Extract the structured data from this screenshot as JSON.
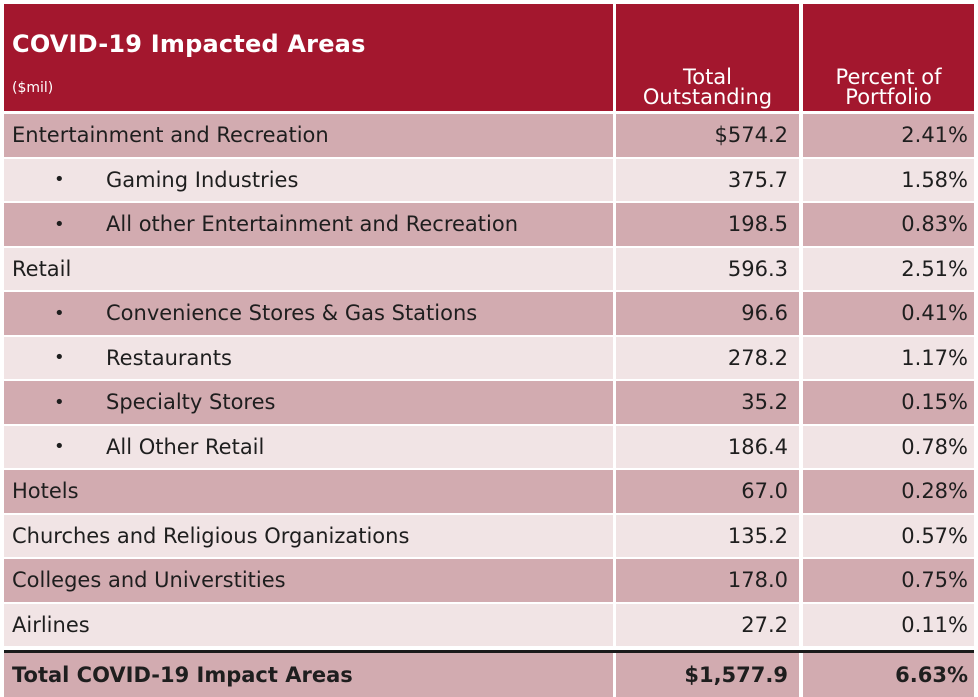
{
  "header": {
    "title": "COVID-19 Impacted Areas",
    "unit": "($mil)",
    "col2_line1": "Total",
    "col2_line2": "Outstanding",
    "col3_line1": "Percent of",
    "col3_line2": "Portfolio"
  },
  "rows": [
    {
      "label": "Entertainment and Recreation",
      "outstanding": "$574.2",
      "percent": "2.41%",
      "indent": false
    },
    {
      "label": "Gaming Industries",
      "outstanding": "375.7",
      "percent": "1.58%",
      "indent": true
    },
    {
      "label": "All other Entertainment and Recreation",
      "outstanding": "198.5",
      "percent": "0.83%",
      "indent": true
    },
    {
      "label": "Retail",
      "outstanding": "596.3",
      "percent": "2.51%",
      "indent": false
    },
    {
      "label": "Convenience Stores & Gas Stations",
      "outstanding": "96.6",
      "percent": "0.41%",
      "indent": true
    },
    {
      "label": "Restaurants",
      "outstanding": "278.2",
      "percent": "1.17%",
      "indent": true
    },
    {
      "label": "Specialty Stores",
      "outstanding": "35.2",
      "percent": "0.15%",
      "indent": true
    },
    {
      "label": "All Other Retail",
      "outstanding": "186.4",
      "percent": "0.78%",
      "indent": true
    },
    {
      "label": "Hotels",
      "outstanding": "67.0",
      "percent": "0.28%",
      "indent": false
    },
    {
      "label": "Churches and Religious Organizations",
      "outstanding": "135.2",
      "percent": "0.57%",
      "indent": false
    },
    {
      "label": "Colleges and Universtities",
      "outstanding": "178.0",
      "percent": "0.75%",
      "indent": false
    },
    {
      "label": "Airlines",
      "outstanding": "27.2",
      "percent": "0.11%",
      "indent": false
    }
  ],
  "bullet": "•",
  "total": {
    "label": "Total COVID-19 Impact Areas",
    "outstanding": "$1,577.9",
    "percent": "6.63%"
  },
  "colors": {
    "header_bg": "#a3172e",
    "row_dark": "#d2abb0",
    "row_light": "#f1e4e5"
  }
}
